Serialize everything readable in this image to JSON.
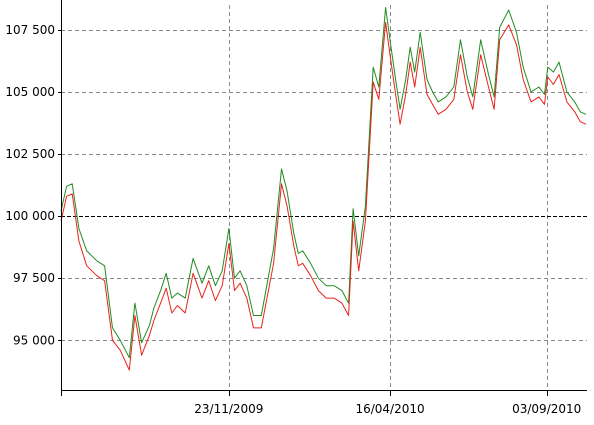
{
  "chart_data": {
    "type": "line",
    "title": "",
    "xlabel": "",
    "ylabel": "",
    "ylim": [
      93000,
      108500
    ],
    "xlim": [
      "2009-06-26",
      "2010-10-09"
    ],
    "grid": true,
    "y_ticks": [
      95000,
      97500,
      100000,
      102500,
      105000,
      107500
    ],
    "y_tick_labels": [
      "95 000",
      "97 500",
      "100 000",
      "102 500",
      "105 000",
      "107 500"
    ],
    "x_ticks": [
      "2009-11-23",
      "2010-04-16",
      "2010-09-03"
    ],
    "x_tick_labels": [
      "23/11/2009",
      "16/04/2010",
      "03/09/2010"
    ],
    "reference_line": 100000,
    "series": [
      {
        "color": "#228b22",
        "x": [
          "2009-06-26",
          "2009-07-01",
          "2009-07-06",
          "2009-07-12",
          "2009-07-19",
          "2009-07-28",
          "2009-08-04",
          "2009-08-11",
          "2009-08-18",
          "2009-08-26",
          "2009-08-31",
          "2009-09-06",
          "2009-09-13",
          "2009-09-17",
          "2009-09-23",
          "2009-09-28",
          "2009-10-03",
          "2009-10-08",
          "2009-10-15",
          "2009-10-22",
          "2009-10-30",
          "2009-11-05",
          "2009-11-11",
          "2009-11-17",
          "2009-11-23",
          "2009-11-28",
          "2009-12-03",
          "2009-12-09",
          "2009-12-15",
          "2009-12-22",
          "2010-01-02",
          "2010-01-09",
          "2010-01-14",
          "2010-01-20",
          "2010-01-24",
          "2010-01-28",
          "2010-02-04",
          "2010-02-11",
          "2010-02-18",
          "2010-02-25",
          "2010-03-04",
          "2010-03-10",
          "2010-03-14",
          "2010-03-19",
          "2010-03-25",
          "2010-04-01",
          "2010-04-06",
          "2010-04-12",
          "2010-04-16",
          "2010-04-21",
          "2010-04-25",
          "2010-04-30",
          "2010-05-04",
          "2010-05-08",
          "2010-05-13",
          "2010-05-19",
          "2010-05-24",
          "2010-05-29",
          "2010-06-05",
          "2010-06-12",
          "2010-06-18",
          "2010-06-24",
          "2010-06-29",
          "2010-07-06",
          "2010-07-13",
          "2010-07-18",
          "2010-07-23",
          "2010-07-31",
          "2010-08-07",
          "2010-08-13",
          "2010-08-20",
          "2010-08-27",
          "2010-09-01",
          "2010-09-04",
          "2010-09-09",
          "2010-09-14",
          "2010-09-21",
          "2010-09-28",
          "2010-10-03",
          "2010-10-08"
        ],
        "values": [
          100200,
          101200,
          101300,
          99500,
          98600,
          98200,
          98000,
          95500,
          95000,
          94300,
          96500,
          94900,
          95600,
          96300,
          97000,
          97700,
          96700,
          96900,
          96700,
          98300,
          97300,
          98000,
          97200,
          97800,
          99500,
          97500,
          97800,
          97200,
          96000,
          96000,
          98700,
          101900,
          101000,
          99300,
          98500,
          98600,
          98100,
          97500,
          97200,
          97200,
          97000,
          96500,
          100300,
          98400,
          100400,
          106000,
          105200,
          108400,
          107100,
          105500,
          104300,
          105500,
          106800,
          105800,
          107400,
          105500,
          105000,
          104600,
          104800,
          105200,
          107100,
          105600,
          104800,
          107100,
          105700,
          104800,
          107600,
          108300,
          107400,
          106000,
          105000,
          105200,
          104900,
          106000,
          105800,
          106200,
          105000,
          104600,
          104200,
          104100
        ]
      },
      {
        "color": "#e8231b",
        "x": [
          "2009-06-26",
          "2009-07-01",
          "2009-07-06",
          "2009-07-12",
          "2009-07-19",
          "2009-07-28",
          "2009-08-04",
          "2009-08-11",
          "2009-08-18",
          "2009-08-26",
          "2009-08-31",
          "2009-09-06",
          "2009-09-13",
          "2009-09-17",
          "2009-09-23",
          "2009-09-28",
          "2009-10-03",
          "2009-10-08",
          "2009-10-15",
          "2009-10-22",
          "2009-10-30",
          "2009-11-05",
          "2009-11-11",
          "2009-11-17",
          "2009-11-23",
          "2009-11-28",
          "2009-12-03",
          "2009-12-09",
          "2009-12-15",
          "2009-12-22",
          "2010-01-02",
          "2010-01-09",
          "2010-01-14",
          "2010-01-20",
          "2010-01-24",
          "2010-01-28",
          "2010-02-04",
          "2010-02-11",
          "2010-02-18",
          "2010-02-25",
          "2010-03-04",
          "2010-03-10",
          "2010-03-14",
          "2010-03-19",
          "2010-03-25",
          "2010-04-01",
          "2010-04-06",
          "2010-04-12",
          "2010-04-16",
          "2010-04-21",
          "2010-04-25",
          "2010-04-30",
          "2010-05-04",
          "2010-05-08",
          "2010-05-13",
          "2010-05-19",
          "2010-05-24",
          "2010-05-29",
          "2010-06-05",
          "2010-06-12",
          "2010-06-18",
          "2010-06-24",
          "2010-06-29",
          "2010-07-06",
          "2010-07-13",
          "2010-07-18",
          "2010-07-23",
          "2010-07-31",
          "2010-08-07",
          "2010-08-13",
          "2010-08-20",
          "2010-08-27",
          "2010-09-01",
          "2010-09-04",
          "2010-09-09",
          "2010-09-14",
          "2010-09-21",
          "2010-09-28",
          "2010-10-03",
          "2010-10-08"
        ],
        "values": [
          99800,
          100800,
          100900,
          99000,
          98000,
          97600,
          97400,
          95000,
          94600,
          93800,
          96000,
          94400,
          95200,
          95800,
          96500,
          97100,
          96100,
          96400,
          96100,
          97700,
          96700,
          97400,
          96600,
          97200,
          98900,
          97000,
          97300,
          96700,
          95500,
          95500,
          98100,
          101300,
          100400,
          98800,
          98000,
          98100,
          97600,
          97000,
          96700,
          96700,
          96500,
          96000,
          99800,
          97800,
          99800,
          105400,
          104700,
          107800,
          106500,
          104900,
          103700,
          104900,
          106200,
          105200,
          106800,
          104900,
          104500,
          104100,
          104300,
          104700,
          106500,
          105000,
          104300,
          106500,
          105200,
          104300,
          107100,
          107700,
          106900,
          105500,
          104600,
          104800,
          104500,
          105600,
          105300,
          105700,
          104600,
          104200,
          103800,
          103700
        ]
      }
    ]
  }
}
